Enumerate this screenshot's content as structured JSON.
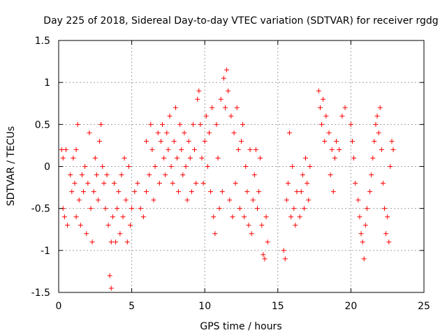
{
  "chart_data": {
    "type": "scatter",
    "title": "Day 225 of 2018, Sidereal Day-to-day VTEC variation (SDTVAR) for receiver rgdg",
    "xlabel": "GPS time / hours",
    "ylabel": "SDTVAR / TECUs",
    "xlim": [
      0,
      25
    ],
    "ylim": [
      -1.5,
      1.5
    ],
    "xticks": [
      "0",
      "5",
      "10",
      "15",
      "20",
      "25"
    ],
    "yticks": [
      "1.5",
      "1",
      "0.5",
      "0",
      "-0.5",
      "-1",
      "-1.5"
    ],
    "grid": true,
    "marker": "+",
    "series_color": "#ff0000",
    "series": [
      {
        "name": "SDTVAR",
        "points": [
          [
            0.2,
            0.2
          ],
          [
            0.3,
            0.1
          ],
          [
            0.3,
            -0.5
          ],
          [
            0.4,
            -0.6
          ],
          [
            0.5,
            0.2
          ],
          [
            0.6,
            -0.7
          ],
          [
            0.8,
            -0.1
          ],
          [
            0.9,
            -0.3
          ],
          [
            1.0,
            0.1
          ],
          [
            1.1,
            -0.2
          ],
          [
            1.2,
            0.2
          ],
          [
            1.2,
            -0.6
          ],
          [
            1.3,
            0.5
          ],
          [
            1.4,
            -0.4
          ],
          [
            1.5,
            -0.7
          ],
          [
            1.6,
            -0.1
          ],
          [
            1.7,
            -0.3
          ],
          [
            1.8,
            0.0
          ],
          [
            1.9,
            -0.8
          ],
          [
            2.0,
            -0.2
          ],
          [
            2.1,
            0.4
          ],
          [
            2.2,
            -0.5
          ],
          [
            2.3,
            -0.9
          ],
          [
            2.4,
            -0.3
          ],
          [
            2.5,
            0.1
          ],
          [
            2.6,
            -0.1
          ],
          [
            2.7,
            -0.4
          ],
          [
            2.8,
            0.3
          ],
          [
            2.9,
            0.5
          ],
          [
            3.0,
            0.0
          ],
          [
            3.1,
            -0.2
          ],
          [
            3.2,
            -0.5
          ],
          [
            3.3,
            -0.1
          ],
          [
            3.4,
            -0.7
          ],
          [
            3.5,
            -1.3
          ],
          [
            3.6,
            -0.9
          ],
          [
            3.6,
            -1.45
          ],
          [
            3.7,
            -0.6
          ],
          [
            3.8,
            -0.2
          ],
          [
            3.9,
            -0.9
          ],
          [
            4.0,
            -0.5
          ],
          [
            4.1,
            -0.3
          ],
          [
            4.2,
            -0.8
          ],
          [
            4.3,
            -0.1
          ],
          [
            4.4,
            -0.6
          ],
          [
            4.5,
            0.1
          ],
          [
            4.6,
            -0.4
          ],
          [
            4.7,
            -0.9
          ],
          [
            4.8,
            0.0
          ],
          [
            4.9,
            -0.7
          ],
          [
            5.0,
            -0.5
          ],
          [
            5.2,
            -0.3
          ],
          [
            5.4,
            -0.2
          ],
          [
            5.6,
            -0.5
          ],
          [
            5.8,
            -0.6
          ],
          [
            6.0,
            -0.3
          ],
          [
            6.0,
            0.3
          ],
          [
            6.2,
            -0.1
          ],
          [
            6.3,
            0.5
          ],
          [
            6.4,
            0.2
          ],
          [
            6.5,
            -0.4
          ],
          [
            6.6,
            0.0
          ],
          [
            6.8,
            0.4
          ],
          [
            6.9,
            -0.2
          ],
          [
            7.0,
            0.3
          ],
          [
            7.1,
            0.5
          ],
          [
            7.2,
            0.1
          ],
          [
            7.3,
            -0.1
          ],
          [
            7.4,
            0.4
          ],
          [
            7.5,
            0.2
          ],
          [
            7.6,
            0.6
          ],
          [
            7.7,
            0.0
          ],
          [
            7.8,
            -0.2
          ],
          [
            7.9,
            0.3
          ],
          [
            8.0,
            0.7
          ],
          [
            8.1,
            0.1
          ],
          [
            8.2,
            -0.3
          ],
          [
            8.3,
            0.5
          ],
          [
            8.4,
            0.2
          ],
          [
            8.5,
            -0.1
          ],
          [
            8.6,
            0.4
          ],
          [
            8.7,
            0.0
          ],
          [
            8.8,
            -0.4
          ],
          [
            8.9,
            0.3
          ],
          [
            9.0,
            0.1
          ],
          [
            9.1,
            -0.3
          ],
          [
            9.2,
            0.5
          ],
          [
            9.3,
            0.2
          ],
          [
            9.4,
            -0.2
          ],
          [
            9.5,
            0.8
          ],
          [
            9.6,
            0.9
          ],
          [
            9.7,
            0.5
          ],
          [
            9.8,
            0.1
          ],
          [
            9.9,
            -0.2
          ],
          [
            10.0,
            0.3
          ],
          [
            10.1,
            0.6
          ],
          [
            10.2,
            0.0
          ],
          [
            10.3,
            0.4
          ],
          [
            10.4,
            -0.3
          ],
          [
            10.5,
            0.7
          ],
          [
            10.6,
            -0.6
          ],
          [
            10.7,
            -0.8
          ],
          [
            10.8,
            0.5
          ],
          [
            10.9,
            0.1
          ],
          [
            11.0,
            -0.5
          ],
          [
            11.1,
            0.8
          ],
          [
            11.2,
            -0.3
          ],
          [
            11.3,
            1.05
          ],
          [
            11.4,
            0.7
          ],
          [
            11.5,
            1.15
          ],
          [
            11.6,
            0.9
          ],
          [
            11.7,
            -0.4
          ],
          [
            11.8,
            0.6
          ],
          [
            11.9,
            -0.6
          ],
          [
            12.0,
            0.4
          ],
          [
            12.1,
            -0.2
          ],
          [
            12.2,
            0.7
          ],
          [
            12.3,
            0.2
          ],
          [
            12.4,
            -0.5
          ],
          [
            12.5,
            0.3
          ],
          [
            12.6,
            0.5
          ],
          [
            12.7,
            -0.6
          ],
          [
            12.8,
            0.0
          ],
          [
            12.9,
            -0.3
          ],
          [
            13.0,
            -0.7
          ],
          [
            13.1,
            0.2
          ],
          [
            13.2,
            -0.8
          ],
          [
            13.3,
            -0.4
          ],
          [
            13.4,
            -0.1
          ],
          [
            13.5,
            0.2
          ],
          [
            13.6,
            -0.5
          ],
          [
            13.7,
            -0.3
          ],
          [
            13.8,
            0.1
          ],
          [
            13.9,
            -0.7
          ],
          [
            14.0,
            -1.05
          ],
          [
            14.1,
            -1.1
          ],
          [
            14.2,
            -0.6
          ],
          [
            14.3,
            -0.9
          ],
          [
            15.4,
            -1.0
          ],
          [
            15.5,
            -1.1
          ],
          [
            15.6,
            -0.4
          ],
          [
            15.7,
            -0.2
          ],
          [
            15.8,
            0.4
          ],
          [
            15.9,
            -0.6
          ],
          [
            16.0,
            0.0
          ],
          [
            16.1,
            -0.5
          ],
          [
            16.2,
            -0.7
          ],
          [
            16.3,
            -0.3
          ],
          [
            16.5,
            -0.6
          ],
          [
            16.6,
            -0.3
          ],
          [
            16.7,
            -0.1
          ],
          [
            16.8,
            -0.5
          ],
          [
            16.9,
            0.1
          ],
          [
            17.0,
            -0.2
          ],
          [
            17.1,
            -0.4
          ],
          [
            17.2,
            0.0
          ],
          [
            17.8,
            0.9
          ],
          [
            17.9,
            0.7
          ],
          [
            18.0,
            0.5
          ],
          [
            18.1,
            0.8
          ],
          [
            18.2,
            0.3
          ],
          [
            18.3,
            0.6
          ],
          [
            18.5,
            0.4
          ],
          [
            18.6,
            -0.1
          ],
          [
            18.7,
            0.2
          ],
          [
            18.8,
            -0.3
          ],
          [
            18.9,
            0.1
          ],
          [
            19.0,
            0.3
          ],
          [
            19.2,
            0.2
          ],
          [
            19.4,
            0.6
          ],
          [
            19.6,
            0.7
          ],
          [
            20.0,
            0.5
          ],
          [
            20.1,
            0.3
          ],
          [
            20.2,
            0.1
          ],
          [
            20.3,
            -0.2
          ],
          [
            20.5,
            -0.4
          ],
          [
            20.6,
            -0.6
          ],
          [
            20.7,
            -0.8
          ],
          [
            20.8,
            -0.9
          ],
          [
            20.9,
            -1.1
          ],
          [
            21.0,
            -0.7
          ],
          [
            21.1,
            -0.5
          ],
          [
            21.3,
            -0.3
          ],
          [
            21.4,
            -0.1
          ],
          [
            21.5,
            0.1
          ],
          [
            21.6,
            0.3
          ],
          [
            21.7,
            0.5
          ],
          [
            21.8,
            0.6
          ],
          [
            21.9,
            0.4
          ],
          [
            22.0,
            0.7
          ],
          [
            22.1,
            0.2
          ],
          [
            22.2,
            -0.2
          ],
          [
            22.3,
            -0.5
          ],
          [
            22.4,
            -0.8
          ],
          [
            22.5,
            -0.6
          ],
          [
            22.6,
            -0.9
          ],
          [
            22.7,
            0.0
          ],
          [
            22.8,
            0.3
          ],
          [
            22.9,
            0.2
          ]
        ]
      }
    ]
  }
}
